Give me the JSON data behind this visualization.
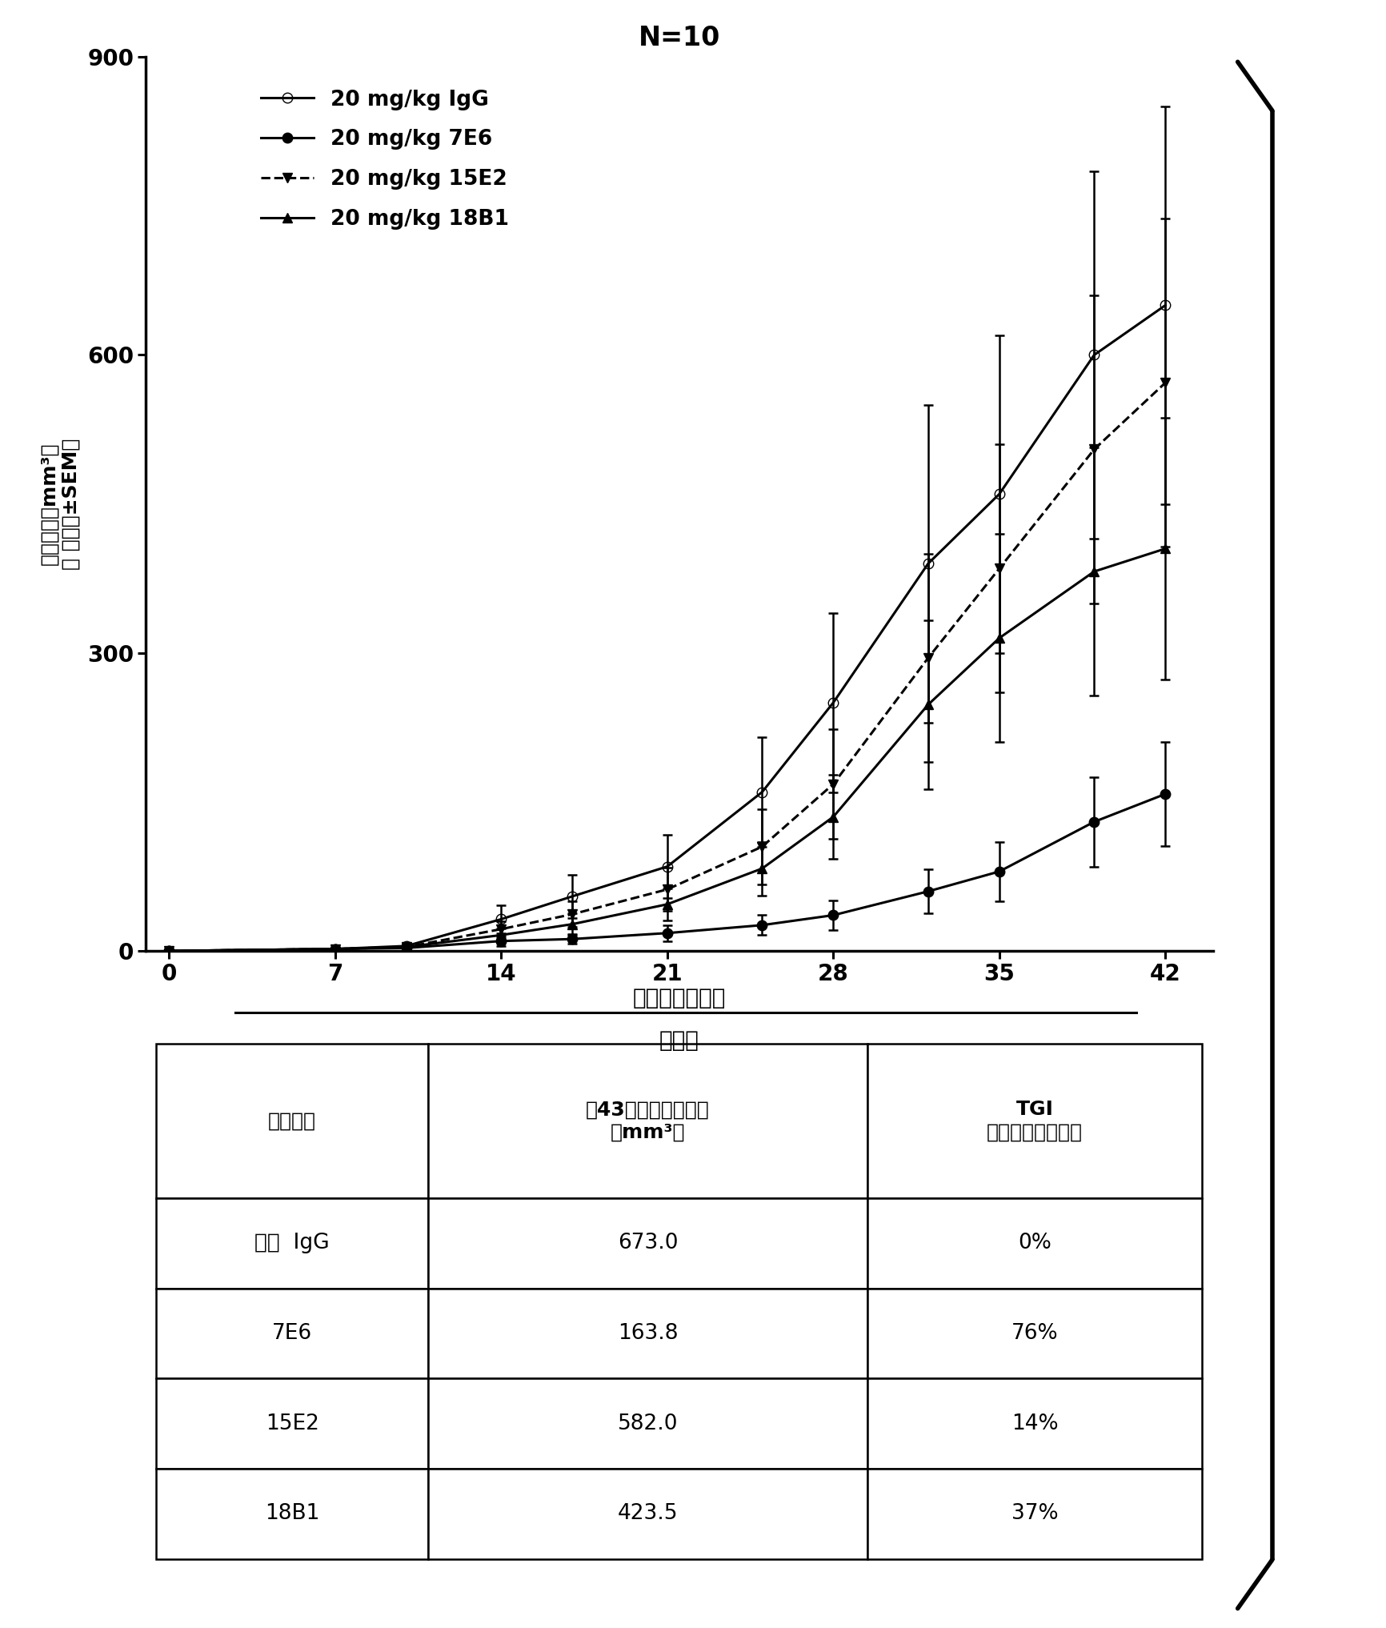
{
  "title": "N=10",
  "xlabel_main": "肿瘾植入后天数",
  "xlabel_sub": "治疗期",
  "ylabel_line1": "肿瘾体积（mm³）",
  "ylabel_line2": "（ 平均値±SEM）",
  "x_ticks": [
    0,
    7,
    14,
    21,
    28,
    35,
    42
  ],
  "ylim": [
    0,
    900
  ],
  "y_ticks": [
    0,
    300,
    600,
    900
  ],
  "series": [
    {
      "label": "20 mg/kg IgG",
      "marker": "o",
      "fillstyle": "none",
      "linestyle": "-",
      "x": [
        0,
        7,
        10,
        14,
        17,
        21,
        25,
        28,
        32,
        35,
        39,
        42
      ],
      "y": [
        0,
        2,
        5,
        32,
        55,
        85,
        160,
        250,
        390,
        460,
        600,
        650
      ],
      "yerr": [
        0,
        1,
        3,
        14,
        22,
        32,
        55,
        90,
        160,
        160,
        185,
        200
      ]
    },
    {
      "label": "20 mg/kg 7E6",
      "marker": "o",
      "fillstyle": "full",
      "linestyle": "-",
      "x": [
        0,
        7,
        10,
        14,
        17,
        21,
        25,
        28,
        32,
        35,
        39,
        42
      ],
      "y": [
        0,
        2,
        3,
        10,
        12,
        18,
        26,
        36,
        60,
        80,
        130,
        158
      ],
      "yerr": [
        0,
        1,
        2,
        5,
        5,
        8,
        10,
        15,
        22,
        30,
        45,
        52
      ]
    },
    {
      "label": "20 mg/kg 15E2",
      "marker": "v",
      "fillstyle": "full",
      "linestyle": "--",
      "x": [
        0,
        7,
        10,
        14,
        17,
        21,
        25,
        28,
        32,
        35,
        39,
        42
      ],
      "y": [
        0,
        2,
        4,
        22,
        37,
        62,
        105,
        168,
        295,
        385,
        505,
        572
      ],
      "yerr": [
        0,
        1,
        2,
        8,
        13,
        22,
        38,
        55,
        105,
        125,
        155,
        165
      ]
    },
    {
      "label": "20 mg/kg 18B1",
      "marker": "^",
      "fillstyle": "full",
      "linestyle": "-",
      "x": [
        0,
        7,
        10,
        14,
        17,
        21,
        25,
        28,
        32,
        35,
        39,
        42
      ],
      "y": [
        0,
        2,
        4,
        16,
        27,
        47,
        83,
        135,
        248,
        315,
        382,
        405
      ],
      "yerr": [
        0,
        1,
        2,
        7,
        11,
        16,
        27,
        42,
        85,
        105,
        125,
        132
      ]
    }
  ],
  "table_col_headers": [
    "抗体治疗",
    "第43天平均肿瘾体积\n（mm³）",
    "TGI\n（肿瘾生长抑制）"
  ],
  "table_rows": [
    [
      "对照  IgG",
      "673.0",
      "0%"
    ],
    [
      "7E6",
      "163.8",
      "76%"
    ],
    [
      "15E2",
      "582.0",
      "14%"
    ],
    [
      "18B1",
      "423.5",
      "37%"
    ]
  ]
}
